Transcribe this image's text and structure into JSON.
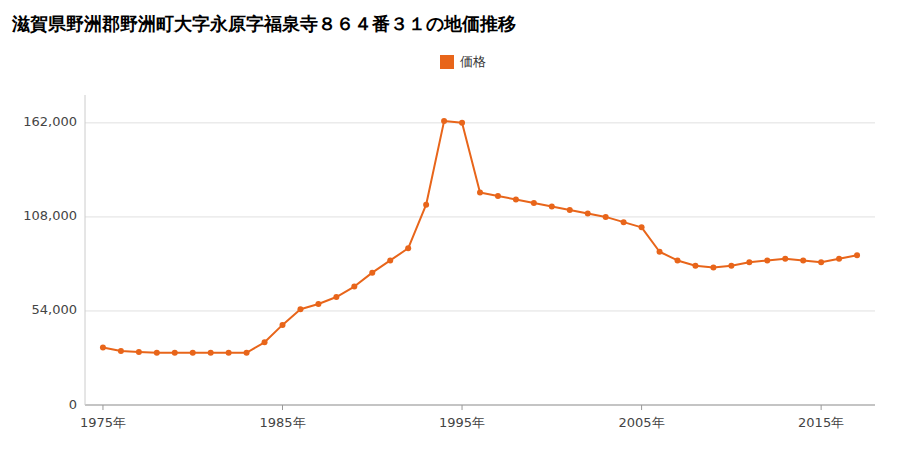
{
  "chart_data": {
    "type": "line",
    "title": "滋賀県野洲郡野洲町大字永原字福泉寺８６４番３１の地価推移",
    "x": [
      1975,
      1976,
      1977,
      1978,
      1979,
      1980,
      1981,
      1982,
      1983,
      1984,
      1985,
      1986,
      1987,
      1988,
      1989,
      1990,
      1991,
      1992,
      1993,
      1994,
      1995,
      1996,
      1997,
      1998,
      1999,
      2000,
      2001,
      2002,
      2003,
      2004,
      2005,
      2006,
      2007,
      2008,
      2009,
      2010,
      2011,
      2012,
      2013,
      2014,
      2015,
      2016,
      2017
    ],
    "series": [
      {
        "name": "価格",
        "color": "#e8651a",
        "marker": "circle",
        "values": [
          33000,
          31000,
          30500,
          30000,
          30000,
          30000,
          30000,
          30000,
          30000,
          36000,
          46000,
          55000,
          58000,
          62000,
          68000,
          76000,
          83000,
          90000,
          115000,
          163000,
          162000,
          122000,
          120000,
          118000,
          116000,
          114000,
          112000,
          110000,
          108000,
          105000,
          102000,
          88000,
          83000,
          80000,
          79000,
          80000,
          82000,
          83000,
          84000,
          83000,
          82000,
          84000,
          86000
        ]
      }
    ],
    "xlim": [
      1974,
      2018
    ],
    "xticks": [
      {
        "value": 1975,
        "label": "1975年"
      },
      {
        "value": 1985,
        "label": "1985年"
      },
      {
        "value": 1995,
        "label": "1995年"
      },
      {
        "value": 2005,
        "label": "2005年"
      },
      {
        "value": 2015,
        "label": "2015年"
      }
    ],
    "ylim": [
      0,
      178000
    ],
    "yticks": [
      0,
      {
        "value": 54000,
        "label": "54,000"
      },
      {
        "value": 108000,
        "label": "108,000"
      },
      {
        "value": 162000,
        "label": "162,000"
      }
    ],
    "grid": "y",
    "legend": "top"
  }
}
